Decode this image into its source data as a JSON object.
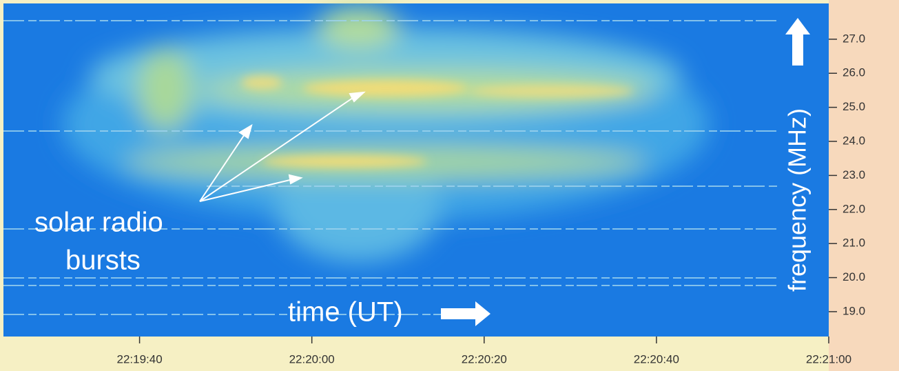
{
  "chart_data": {
    "type": "spectrogram",
    "annotations": [
      "solar radio",
      "bursts",
      "time (UT)"
    ],
    "ylabel": "frequency (MHz)",
    "xlim": [
      24.2,
      120
    ],
    "xticks": [
      {
        "value": 40,
        "label": "22:19:40"
      },
      {
        "value": 60,
        "label": "22:20:00"
      },
      {
        "value": 80,
        "label": "22:20:20"
      },
      {
        "value": 100,
        "label": "22:20:40"
      },
      {
        "value": 120,
        "label": "22:21:00"
      }
    ],
    "ylim": [
      18.27,
      28.05
    ],
    "yticks": [
      {
        "value": 19,
        "label": "19.0"
      },
      {
        "value": 20,
        "label": "20.0"
      },
      {
        "value": 21,
        "label": "21.0"
      },
      {
        "value": 22,
        "label": "22.0"
      },
      {
        "value": 23,
        "label": "23.0"
      },
      {
        "value": 24,
        "label": "24.0"
      },
      {
        "value": 25,
        "label": "25.0"
      },
      {
        "value": 26,
        "label": "26.0"
      },
      {
        "value": 27,
        "label": "27.0"
      }
    ]
  }
}
